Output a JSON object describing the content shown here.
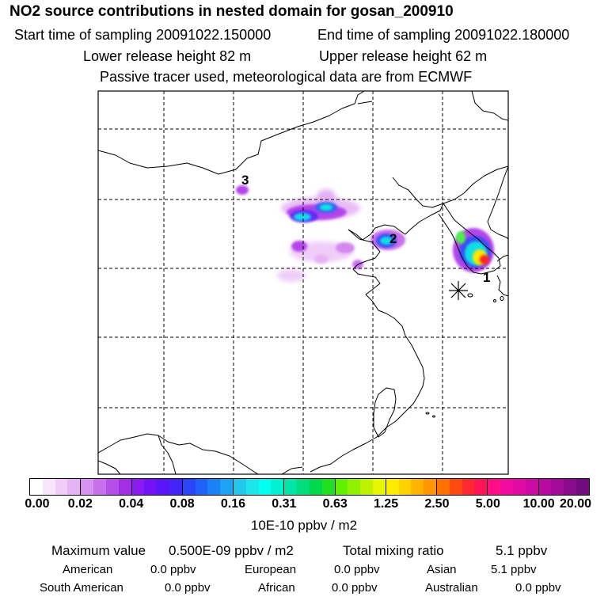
{
  "title": "NO2 source contributions in nested domain for gosan_200910",
  "header": {
    "start_label": "Start time of sampling 20091022.150000",
    "end_label": "End time of sampling 20091022.180000",
    "lower_label": "Lower release height   82 m",
    "upper_label": "Upper release height   62 m",
    "tracer_note": "Passive tracer used, meteorological data are from ECMWF"
  },
  "map": {
    "receptor_labels": [
      "1",
      "2",
      "3"
    ]
  },
  "colorbar": {
    "ticks": [
      "0.00",
      "0.02",
      "0.04",
      "0.08",
      "0.16",
      "0.31",
      "0.63",
      "1.25",
      "2.50",
      "5.00",
      "10.00",
      "20.00"
    ],
    "units": "10E-10 ppbv / m2",
    "colors": [
      "#ffffff",
      "#f6e6fb",
      "#efcdf8",
      "#e6b4f4",
      "#d793ef",
      "#c870eb",
      "#b64ee8",
      "#a02fe6",
      "#8a1bf0",
      "#7212f5",
      "#5a15f8",
      "#4524fa",
      "#2a44f8",
      "#1e62f6",
      "#1a82f6",
      "#1ea2f3",
      "#22c8ec",
      "#1ee5ea",
      "#00ffee",
      "#00f0d2",
      "#00e6a8",
      "#00dd7c",
      "#00d84c",
      "#20e020",
      "#60f000",
      "#90f200",
      "#c0f200",
      "#e6f600",
      "#ffec00",
      "#ffd200",
      "#ffb400",
      "#ff9600",
      "#ff7200",
      "#ff4a10",
      "#ff2830",
      "#ff1458",
      "#ff0c86",
      "#f20aa0",
      "#e00aa4",
      "#cc0aa4",
      "#b80aa0",
      "#a20a98",
      "#8a0a8c",
      "#720a80"
    ]
  },
  "summary": {
    "max_label": "Maximum value",
    "max_value": "0.500E-09 ppbv / m2",
    "total_label": "Total mixing ratio",
    "total_value": "5.1 ppbv",
    "regions": [
      {
        "name": "American",
        "value": "0.0 ppbv"
      },
      {
        "name": "European",
        "value": "0.0 ppbv"
      },
      {
        "name": "Asian",
        "value": "5.1 ppbv"
      },
      {
        "name": "South American",
        "value": "0.0 ppbv"
      },
      {
        "name": "African",
        "value": "0.0 ppbv"
      },
      {
        "name": "Australian",
        "value": "0.0 ppbv"
      }
    ]
  }
}
